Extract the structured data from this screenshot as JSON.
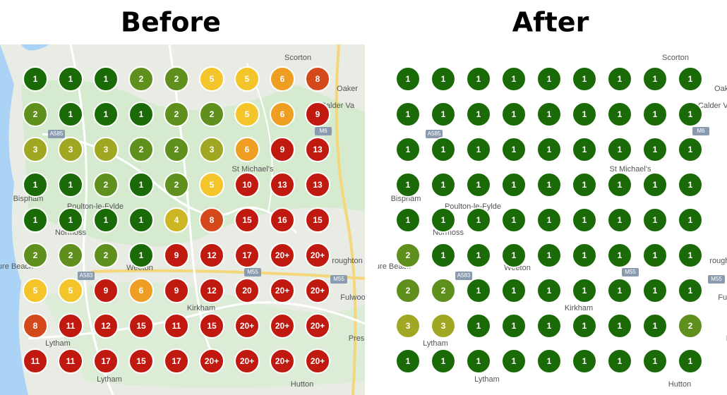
{
  "before": {
    "title": "Before",
    "rows": [
      [
        "1",
        "1",
        "1",
        "2",
        "2",
        "5",
        "5",
        "6",
        "8"
      ],
      [
        "2",
        "1",
        "1",
        "1",
        "2",
        "2",
        "5",
        "6",
        "9"
      ],
      [
        "3",
        "3",
        "3",
        "2",
        "2",
        "3",
        "6",
        "9",
        "13"
      ],
      [
        "1",
        "1",
        "2",
        "1",
        "2",
        "5",
        "10",
        "13",
        "13"
      ],
      [
        "1",
        "1",
        "1",
        "1",
        "4",
        "8",
        "15",
        "16",
        "15"
      ],
      [
        "2",
        "2",
        "2",
        "1",
        "9",
        "12",
        "17",
        "20+",
        "20+"
      ],
      [
        "5",
        "5",
        "9",
        "6",
        "9",
        "12",
        "20",
        "20+",
        "20+"
      ],
      [
        "8",
        "11",
        "12",
        "15",
        "11",
        "15",
        "20+",
        "20+",
        "20+"
      ],
      [
        "11",
        "11",
        "17",
        "15",
        "17",
        "20+",
        "20+",
        "20+",
        "20+"
      ]
    ]
  },
  "after": {
    "title": "After",
    "rows": [
      [
        "1",
        "1",
        "1",
        "1",
        "1",
        "1",
        "1",
        "1",
        "1"
      ],
      [
        "1",
        "1",
        "1",
        "1",
        "1",
        "1",
        "1",
        "1",
        "1"
      ],
      [
        "1",
        "1",
        "1",
        "1",
        "1",
        "1",
        "1",
        "1",
        "1"
      ],
      [
        "1",
        "1",
        "1",
        "1",
        "1",
        "1",
        "1",
        "1",
        "1"
      ],
      [
        "1",
        "1",
        "1",
        "1",
        "1",
        "1",
        "1",
        "1",
        "1"
      ],
      [
        "2",
        "1",
        "1",
        "1",
        "1",
        "1",
        "1",
        "1",
        "1"
      ],
      [
        "2",
        "2",
        "1",
        "1",
        "1",
        "1",
        "1",
        "1",
        "1"
      ],
      [
        "3",
        "3",
        "1",
        "1",
        "1",
        "1",
        "1",
        "1",
        "2"
      ],
      [
        "1",
        "1",
        "1",
        "1",
        "1",
        "1",
        "1",
        "1",
        "1"
      ]
    ]
  },
  "map": {
    "places": [
      "Scorton",
      "Oaker",
      "Calder Va",
      "St Michael's",
      "Bispham",
      "Poulton-le-Fylde",
      "Normoss",
      "Weeton",
      "Kirkham",
      "Lytham",
      "Lytham",
      "Pres",
      "Hutton",
      "ure Beach",
      "roughton",
      "Fulwoo"
    ],
    "roads": [
      "M6",
      "A585",
      "A583",
      "M55",
      "M55"
    ]
  }
}
